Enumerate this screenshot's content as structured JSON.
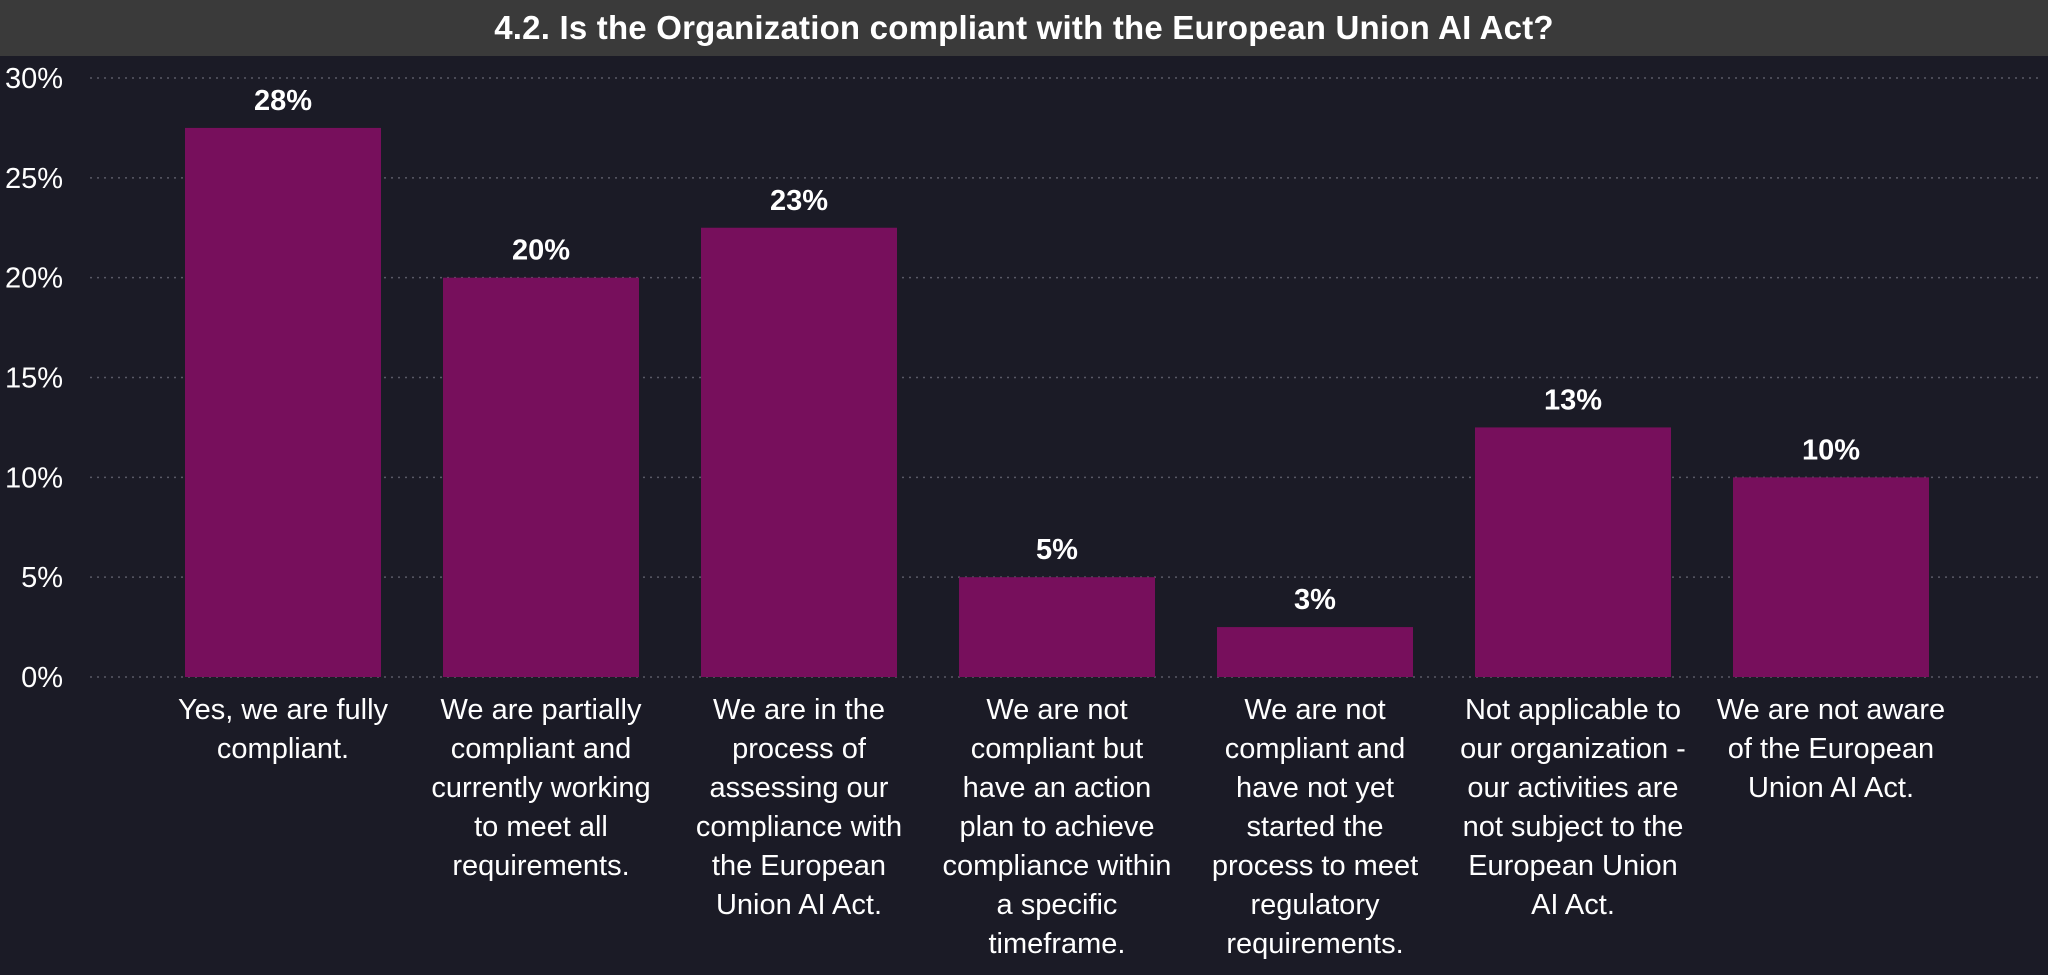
{
  "colors": {
    "background": "#1b1b26",
    "title_bar": "#3a3a3a",
    "bar": "#770f5c",
    "gridline": "#5a5a66",
    "text": "#ffffff"
  },
  "chart_data": {
    "type": "bar",
    "title": "4.2. Is the Organization compliant with the European Union AI Act?",
    "xlabel": "",
    "ylabel": "",
    "ylim": [
      0,
      30
    ],
    "yticks": [
      0,
      5,
      10,
      15,
      20,
      25,
      30
    ],
    "ytick_labels": [
      "0%",
      "5%",
      "10%",
      "15%",
      "20%",
      "25%",
      "30%"
    ],
    "grid": true,
    "categories": [
      "Yes, we are fully compliant.",
      "We are partially compliant and currently working to meet all requirements.",
      "We are in the process of assessing our compliance with the European Union AI Act.",
      "We are not compliant but have an action plan to achieve compliance within a specific timeframe.",
      "We are not compliant and have not yet started the process to meet regulatory requirements.",
      "Not applicable to our organization - our activities are not subject to the European Union AI Act.",
      "We are not aware of the European Union AI Act."
    ],
    "category_label_lines": [
      [
        "Yes, we are fully",
        "compliant."
      ],
      [
        "We are partially",
        "compliant and",
        "currently working",
        "to meet all",
        "requirements."
      ],
      [
        "We are in the",
        "process of",
        "assessing our",
        "compliance with",
        "the European",
        "Union AI Act."
      ],
      [
        "We are not",
        "compliant but",
        "have an action",
        "plan to achieve",
        "compliance within",
        "a specific",
        "timeframe."
      ],
      [
        "We are not",
        "compliant and",
        "have not yet",
        "started the",
        "process to meet",
        "regulatory",
        "requirements."
      ],
      [
        "Not applicable to",
        "our organization -",
        "our activities are",
        "not subject to the",
        "European Union",
        "AI Act."
      ],
      [
        "We are not aware",
        "of the European",
        "Union AI Act."
      ]
    ],
    "values": [
      27.5,
      20,
      22.5,
      5,
      2.5,
      12.5,
      10
    ],
    "data_labels": [
      "28%",
      "20%",
      "23%",
      "5%",
      "3%",
      "13%",
      "10%"
    ]
  }
}
